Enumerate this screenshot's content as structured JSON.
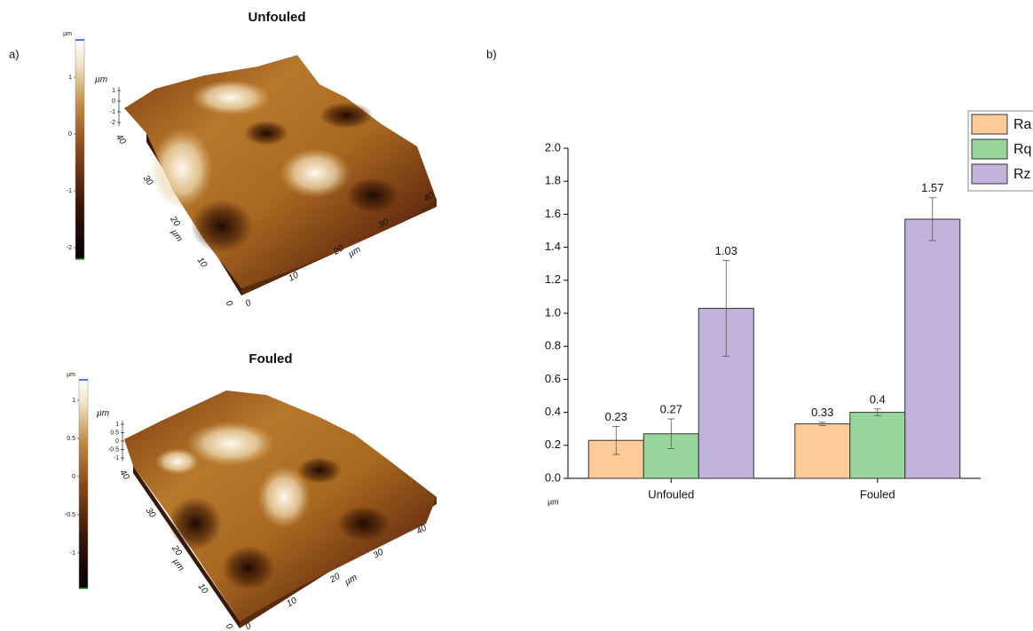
{
  "panel_labels": [
    "a)",
    "b)"
  ],
  "afm_images": [
    {
      "title": "Unfouled",
      "colorbar_unit": "µm",
      "colorbar_ticks": [
        1,
        0,
        -1,
        -2
      ],
      "z_unit": "µm",
      "z_ticks": [
        1,
        0,
        -1,
        -2
      ],
      "y_unit": "µm",
      "y_ticks": [
        40,
        30,
        20,
        10,
        0
      ],
      "x_unit": "µm",
      "x_ticks": [
        0,
        10,
        20,
        30,
        40
      ]
    },
    {
      "title": "Fouled",
      "colorbar_unit": "µm",
      "colorbar_ticks": [
        1,
        0.5,
        0,
        -0.5,
        -1
      ],
      "z_unit": "µm",
      "z_ticks": [
        1,
        0.5,
        0,
        -0.5,
        -1
      ],
      "y_unit": "µm",
      "y_ticks": [
        40,
        30,
        20,
        10,
        0
      ],
      "x_unit": "µm",
      "x_ticks": [
        0,
        10,
        20,
        30,
        40
      ]
    }
  ],
  "chart_data": {
    "type": "bar",
    "y_label": "µm",
    "categories": [
      "Unfouled",
      "Fouled"
    ],
    "series": [
      {
        "name": "Ra",
        "color": "#ffcc99",
        "values": [
          0.23,
          0.33
        ],
        "errors": [
          0.085,
          0.01
        ]
      },
      {
        "name": "Rq",
        "color": "#99d69b",
        "values": [
          0.27,
          0.4
        ],
        "errors": [
          0.09,
          0.02
        ]
      },
      {
        "name": "Rz",
        "color": "#c3b2dc",
        "values": [
          1.03,
          1.57
        ],
        "errors": [
          0.29,
          0.13
        ]
      }
    ],
    "ylim": [
      0,
      2
    ],
    "yticks": [
      {
        "value": 0,
        "label": "0.0"
      },
      {
        "value": 0.2,
        "label": "0.2"
      },
      {
        "value": 0.4,
        "label": "0.4"
      },
      {
        "value": 0.6,
        "label": "0.6"
      },
      {
        "value": 0.8,
        "label": "0.8"
      },
      {
        "value": 1,
        "label": "1.0"
      },
      {
        "value": 1.2,
        "label": "1.2"
      },
      {
        "value": 1.4,
        "label": "1.4"
      },
      {
        "value": 1.6,
        "label": "1.6"
      },
      {
        "value": 1.8,
        "label": "1.8"
      },
      {
        "value": 2,
        "label": "2.0"
      }
    ],
    "legend": "upper right"
  }
}
